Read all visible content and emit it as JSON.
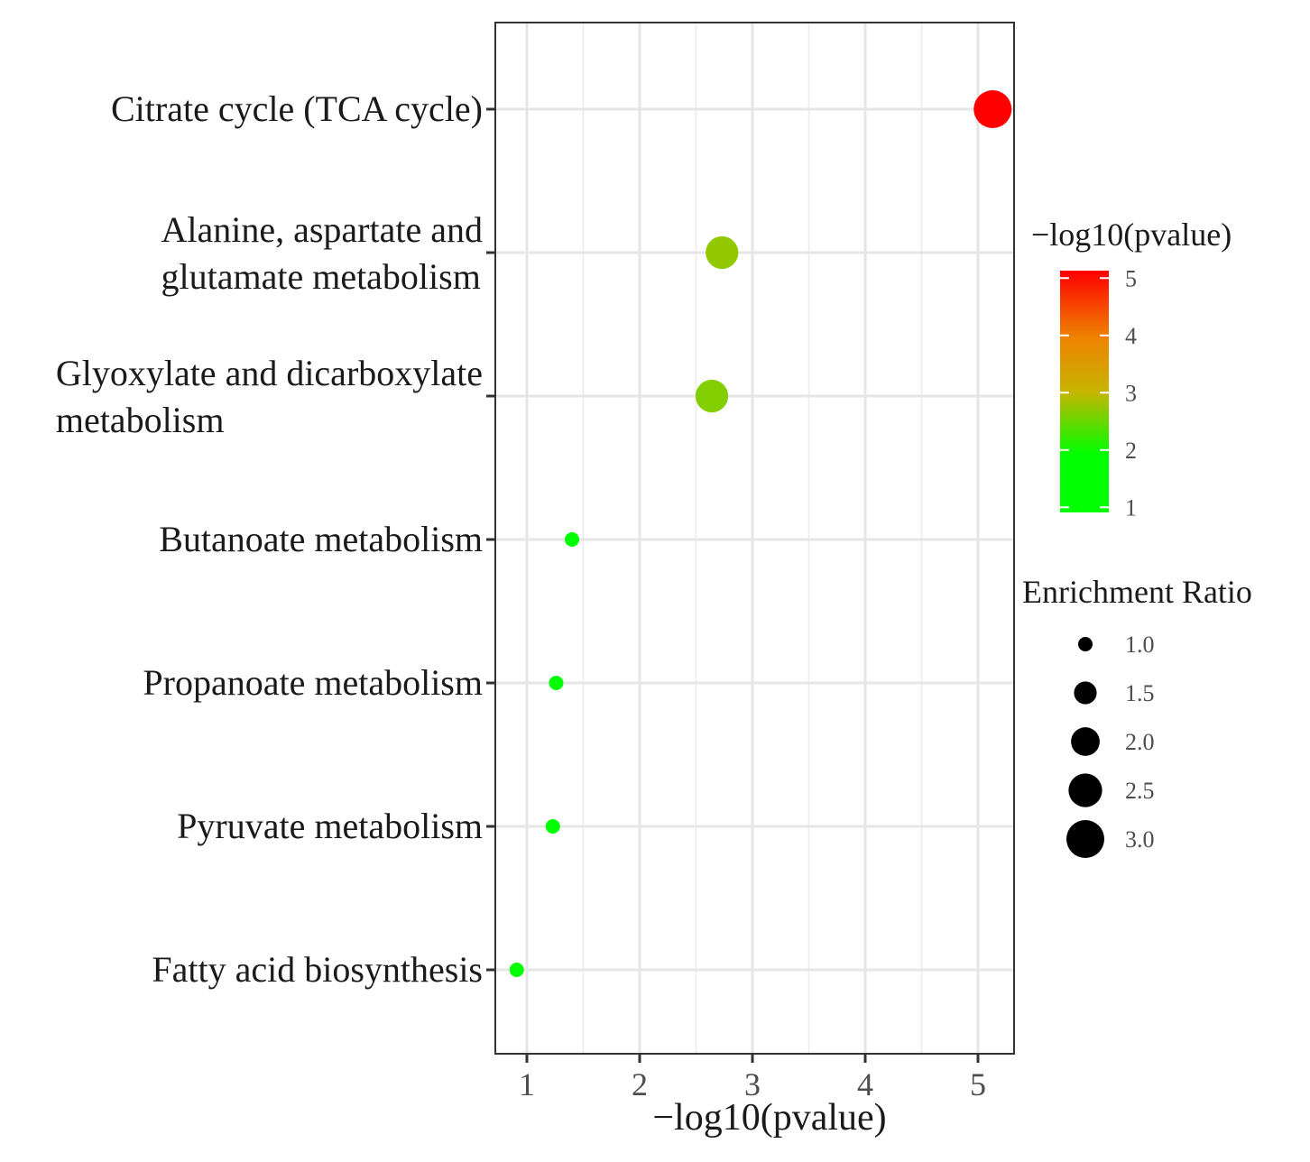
{
  "chart_data": {
    "type": "scatter",
    "subtype": "bubble",
    "xlabel": "−log10(pvalue)",
    "ylabel": "",
    "xlim": [
      0.72,
      5.32
    ],
    "xticks": [
      1,
      2,
      3,
      4,
      5
    ],
    "xtick_labels": [
      "1",
      "2",
      "3",
      "4",
      "5"
    ],
    "grid": true,
    "categories": [
      {
        "lines": [
          "Citrate cycle (TCA cycle)"
        ]
      },
      {
        "lines": [
          "Alanine, aspartate and",
          "glutamate metabolism"
        ]
      },
      {
        "lines": [
          "Glyoxylate and dicarboxylate",
          "metabolism"
        ]
      },
      {
        "lines": [
          "Butanoate metabolism"
        ]
      },
      {
        "lines": [
          "Propanoate metabolism"
        ]
      },
      {
        "lines": [
          "Pyruvate metabolism"
        ]
      },
      {
        "lines": [
          "Fatty acid biosynthesis"
        ]
      }
    ],
    "points": [
      {
        "x": 5.13,
        "color_value": 5.13,
        "enrichment_ratio": 3.0
      },
      {
        "x": 2.73,
        "color_value": 2.73,
        "enrichment_ratio": 2.4
      },
      {
        "x": 2.64,
        "color_value": 2.64,
        "enrichment_ratio": 2.4
      },
      {
        "x": 1.4,
        "color_value": 1.4,
        "enrichment_ratio": 1.0
      },
      {
        "x": 1.26,
        "color_value": 1.26,
        "enrichment_ratio": 1.0
      },
      {
        "x": 1.23,
        "color_value": 1.23,
        "enrichment_ratio": 1.0
      },
      {
        "x": 0.91,
        "color_value": 0.91,
        "enrichment_ratio": 1.0
      }
    ],
    "color_legend": {
      "title": "−log10(pvalue)",
      "range": [
        0.91,
        5.13
      ],
      "ticks": [
        1,
        2,
        3,
        4,
        5
      ],
      "tick_labels": [
        "1",
        "2",
        "3",
        "4",
        "5"
      ],
      "colors": [
        {
          "stop": 0.0,
          "color": "#00ff00"
        },
        {
          "stop": 0.24,
          "color": "#00ff00"
        },
        {
          "stop": 0.5,
          "color": "#c7b400"
        },
        {
          "stop": 0.72,
          "color": "#ee8400"
        },
        {
          "stop": 1.0,
          "color": "#ff0000"
        }
      ]
    },
    "size_legend": {
      "title": "Enrichment Ratio",
      "values": [
        1.0,
        1.5,
        2.0,
        2.5,
        3.0
      ],
      "labels": [
        "1.0",
        "1.5",
        "2.0",
        "2.5",
        "3.0"
      ]
    }
  }
}
